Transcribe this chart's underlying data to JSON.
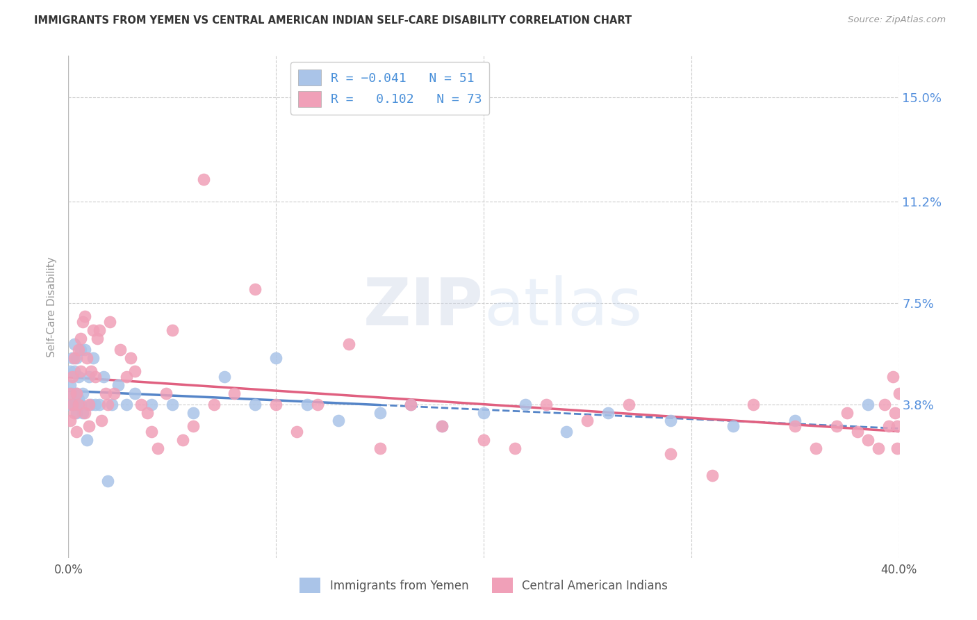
{
  "title": "IMMIGRANTS FROM YEMEN VS CENTRAL AMERICAN INDIAN SELF-CARE DISABILITY CORRELATION CHART",
  "source": "Source: ZipAtlas.com",
  "ylabel": "Self-Care Disability",
  "xlim": [
    0.0,
    0.4
  ],
  "ylim": [
    -0.018,
    0.165
  ],
  "yticks": [
    0.038,
    0.075,
    0.112,
    0.15
  ],
  "ytick_labels": [
    "3.8%",
    "7.5%",
    "11.2%",
    "15.0%"
  ],
  "watermark_text": "ZIPatlas",
  "series1": {
    "name": "Immigrants from Yemen",
    "color": "#aac4e8",
    "line_color": "#5585c8",
    "R": -0.041,
    "N": 51,
    "x": [
      0.001,
      0.001,
      0.001,
      0.002,
      0.002,
      0.002,
      0.003,
      0.003,
      0.003,
      0.004,
      0.004,
      0.004,
      0.005,
      0.005,
      0.005,
      0.006,
      0.006,
      0.007,
      0.007,
      0.008,
      0.009,
      0.01,
      0.011,
      0.012,
      0.013,
      0.015,
      0.017,
      0.019,
      0.021,
      0.024,
      0.028,
      0.032,
      0.04,
      0.05,
      0.06,
      0.075,
      0.09,
      0.1,
      0.115,
      0.13,
      0.15,
      0.165,
      0.18,
      0.2,
      0.22,
      0.24,
      0.26,
      0.29,
      0.32,
      0.35,
      0.385
    ],
    "y": [
      0.038,
      0.045,
      0.05,
      0.038,
      0.042,
      0.055,
      0.038,
      0.05,
      0.06,
      0.042,
      0.035,
      0.055,
      0.038,
      0.04,
      0.048,
      0.038,
      0.058,
      0.035,
      0.042,
      0.058,
      0.025,
      0.048,
      0.038,
      0.055,
      0.038,
      0.038,
      0.048,
      0.01,
      0.038,
      0.045,
      0.038,
      0.042,
      0.038,
      0.038,
      0.035,
      0.048,
      0.038,
      0.055,
      0.038,
      0.032,
      0.035,
      0.038,
      0.03,
      0.035,
      0.038,
      0.028,
      0.035,
      0.032,
      0.03,
      0.032,
      0.038
    ]
  },
  "series2": {
    "name": "Central American Indians",
    "color": "#f0a0b8",
    "line_color": "#e06080",
    "R": 0.102,
    "N": 73,
    "x": [
      0.001,
      0.001,
      0.002,
      0.002,
      0.003,
      0.003,
      0.004,
      0.004,
      0.005,
      0.005,
      0.006,
      0.006,
      0.007,
      0.008,
      0.008,
      0.009,
      0.01,
      0.01,
      0.011,
      0.012,
      0.013,
      0.014,
      0.015,
      0.016,
      0.018,
      0.019,
      0.02,
      0.022,
      0.025,
      0.028,
      0.03,
      0.032,
      0.035,
      0.038,
      0.04,
      0.043,
      0.047,
      0.05,
      0.055,
      0.06,
      0.065,
      0.07,
      0.08,
      0.09,
      0.1,
      0.11,
      0.12,
      0.135,
      0.15,
      0.165,
      0.18,
      0.2,
      0.215,
      0.23,
      0.25,
      0.27,
      0.29,
      0.31,
      0.33,
      0.35,
      0.36,
      0.37,
      0.375,
      0.38,
      0.385,
      0.39,
      0.393,
      0.395,
      0.397,
      0.398,
      0.399,
      0.399,
      0.4
    ],
    "y": [
      0.032,
      0.042,
      0.038,
      0.048,
      0.035,
      0.055,
      0.042,
      0.028,
      0.058,
      0.038,
      0.05,
      0.062,
      0.068,
      0.07,
      0.035,
      0.055,
      0.038,
      0.03,
      0.05,
      0.065,
      0.048,
      0.062,
      0.065,
      0.032,
      0.042,
      0.038,
      0.068,
      0.042,
      0.058,
      0.048,
      0.055,
      0.05,
      0.038,
      0.035,
      0.028,
      0.022,
      0.042,
      0.065,
      0.025,
      0.03,
      0.12,
      0.038,
      0.042,
      0.08,
      0.038,
      0.028,
      0.038,
      0.06,
      0.022,
      0.038,
      0.03,
      0.025,
      0.022,
      0.038,
      0.032,
      0.038,
      0.02,
      0.012,
      0.038,
      0.03,
      0.022,
      0.03,
      0.035,
      0.028,
      0.025,
      0.022,
      0.038,
      0.03,
      0.048,
      0.035,
      0.022,
      0.03,
      0.042
    ]
  },
  "legend_color": "#4a90d9",
  "tick_color_right": "#5590dd",
  "grid_color": "#cccccc",
  "background_color": "#ffffff"
}
